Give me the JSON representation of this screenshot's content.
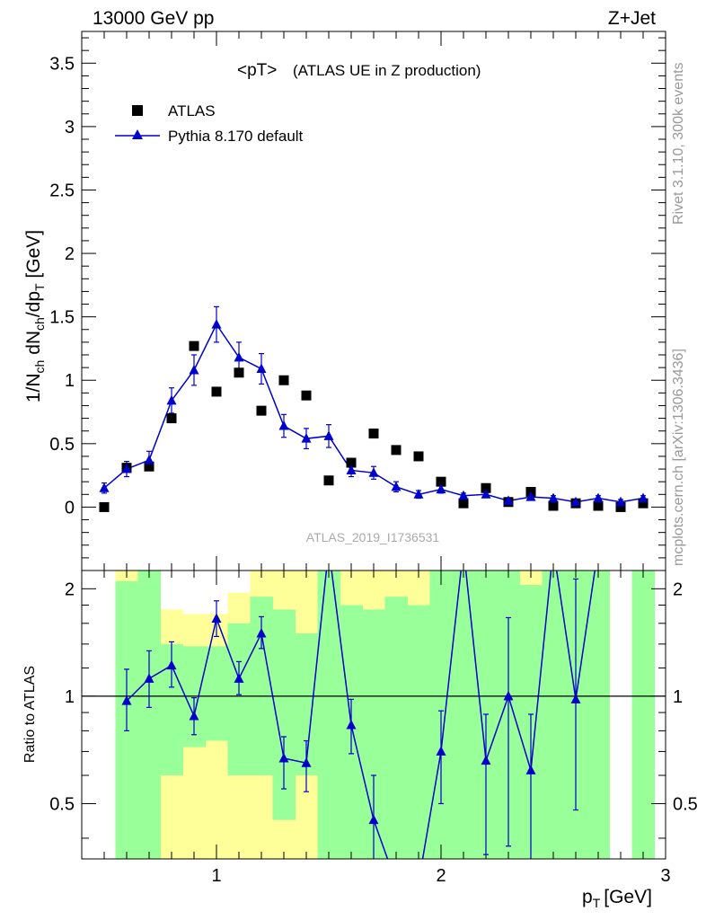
{
  "header": {
    "left": "13000 GeV pp",
    "right": "Z+Jet"
  },
  "side_labels": {
    "rivet": "Rivet 3.1.10,  300k events",
    "mcplots": "mcplots.cern.ch [arXiv:1306.3436]"
  },
  "chart_data": [
    {
      "type": "scatter",
      "title": "<pT>",
      "subtitle": "(ATLAS UE in Z production)",
      "watermark": "ATLAS_2019_I1736531",
      "xlabel": "p_T [GeV]",
      "xlabel_main": "p",
      "xlabel_sub": "T",
      "xlabel_unit": "[GeV]",
      "ylabel": "1/N_ch dN_ch/dp_T [GeV]",
      "xlim": [
        0.4,
        3.0
      ],
      "ylim": [
        -0.5,
        3.75
      ],
      "x_ticks": [
        "1",
        "2",
        "3"
      ],
      "y_ticks": [
        "0",
        "0.5",
        "1",
        "1.5",
        "2",
        "2.5",
        "3",
        "3.5"
      ],
      "legend_position": "top-left",
      "x": [
        0.5,
        0.6,
        0.7,
        0.8,
        0.9,
        1.0,
        1.1,
        1.2,
        1.3,
        1.4,
        1.5,
        1.6,
        1.7,
        1.8,
        1.9,
        2.0,
        2.1,
        2.2,
        2.3,
        2.4,
        2.5,
        2.6,
        2.7,
        2.8,
        2.9
      ],
      "series": [
        {
          "name": "ATLAS",
          "marker": "square",
          "color": "#000000",
          "values": [
            0.0,
            0.31,
            0.32,
            0.7,
            1.27,
            0.91,
            1.06,
            0.76,
            1.0,
            0.88,
            0.21,
            0.35,
            0.58,
            0.45,
            0.4,
            0.2,
            0.03,
            0.15,
            0.04,
            0.12,
            0.01,
            0.03,
            0.01,
            0.0,
            0.03
          ]
        },
        {
          "name": "Pythia 8.170 default",
          "marker": "triangle",
          "color": "#0000cc",
          "values": [
            0.15,
            0.3,
            0.37,
            0.84,
            1.08,
            1.44,
            1.18,
            1.09,
            0.64,
            0.54,
            0.56,
            0.29,
            0.27,
            0.16,
            0.1,
            0.14,
            0.09,
            0.1,
            0.05,
            0.08,
            0.07,
            0.04,
            0.07,
            0.04,
            0.07
          ],
          "errors": [
            0.04,
            0.06,
            0.07,
            0.1,
            0.12,
            0.14,
            0.12,
            0.12,
            0.09,
            0.08,
            0.09,
            0.05,
            0.05,
            0.04,
            0.03,
            0.03,
            0.02,
            0.02,
            0.02,
            0.02,
            0.02,
            0.02,
            0.02,
            0.02,
            0.02
          ]
        }
      ]
    },
    {
      "type": "line",
      "ylabel": "Ratio to ATLAS",
      "xlim": [
        0.4,
        3.0
      ],
      "ylim": [
        0.35,
        2.25
      ],
      "y_ticks": [
        "0.5",
        "1",
        "2"
      ],
      "reference_line": 1.0,
      "bands": {
        "yellow": [
          [
            0.45,
            0.55,
            null,
            null
          ],
          [
            0.55,
            0.65,
            2.25,
            0.35
          ],
          [
            0.65,
            0.75,
            null,
            null
          ],
          [
            0.75,
            0.85,
            1.75,
            0.35
          ],
          [
            0.85,
            0.95,
            1.7,
            0.35
          ],
          [
            0.95,
            1.05,
            1.7,
            0.35
          ],
          [
            1.05,
            1.15,
            1.95,
            0.35
          ],
          [
            1.15,
            1.25,
            2.25,
            0.35
          ],
          [
            1.25,
            1.35,
            2.25,
            0.35
          ],
          [
            1.35,
            1.45,
            2.25,
            0.35
          ],
          [
            1.45,
            1.55,
            2.25,
            0.35
          ],
          [
            1.55,
            1.65,
            2.25,
            0.35
          ],
          [
            1.65,
            1.75,
            2.25,
            0.35
          ],
          [
            1.75,
            1.85,
            2.25,
            0.35
          ],
          [
            1.85,
            1.95,
            2.25,
            0.35
          ],
          [
            1.95,
            2.05,
            2.25,
            0.35
          ],
          [
            2.05,
            2.15,
            2.25,
            0.35
          ],
          [
            2.15,
            2.25,
            2.25,
            0.35
          ],
          [
            2.25,
            2.35,
            2.25,
            0.35
          ],
          [
            2.35,
            2.45,
            2.25,
            0.35
          ],
          [
            2.45,
            2.55,
            2.25,
            0.35
          ],
          [
            2.55,
            2.65,
            2.25,
            0.35
          ],
          [
            2.65,
            2.75,
            2.25,
            0.35
          ]
        ],
        "green": [
          [
            0.55,
            0.65,
            2.1,
            0.35
          ],
          [
            0.65,
            0.75,
            2.25,
            0.35
          ],
          [
            0.75,
            0.85,
            1.4,
            0.6
          ],
          [
            0.85,
            0.95,
            1.38,
            0.72
          ],
          [
            0.95,
            1.05,
            1.38,
            0.75
          ],
          [
            1.05,
            1.15,
            1.6,
            0.6
          ],
          [
            1.15,
            1.25,
            1.9,
            0.6
          ],
          [
            1.25,
            1.35,
            1.75,
            0.45
          ],
          [
            1.35,
            1.45,
            1.5,
            0.6
          ],
          [
            1.45,
            1.55,
            2.25,
            0.35
          ],
          [
            1.55,
            1.65,
            1.8,
            0.35
          ],
          [
            1.65,
            1.75,
            1.75,
            0.35
          ],
          [
            1.75,
            1.85,
            1.9,
            0.35
          ],
          [
            1.85,
            1.95,
            1.8,
            0.35
          ],
          [
            1.95,
            2.05,
            2.25,
            0.35
          ],
          [
            2.05,
            2.15,
            2.25,
            0.35
          ],
          [
            2.15,
            2.25,
            2.25,
            0.35
          ],
          [
            2.25,
            2.35,
            2.25,
            0.35
          ],
          [
            2.35,
            2.45,
            2.05,
            0.35
          ],
          [
            2.45,
            2.55,
            2.25,
            0.35
          ],
          [
            2.55,
            2.65,
            2.25,
            0.35
          ],
          [
            2.65,
            2.75,
            2.25,
            0.35
          ],
          [
            2.85,
            2.95,
            2.25,
            0.35
          ]
        ]
      },
      "series": [
        {
          "name": "Pythia 8.170 default",
          "color": "#0000cc",
          "x": [
            0.6,
            0.7,
            0.8,
            0.9,
            1.0,
            1.1,
            1.2,
            1.3,
            1.4,
            1.5,
            1.6,
            1.7,
            1.8,
            1.9,
            2.0,
            2.1,
            2.2,
            2.3,
            2.4,
            2.5,
            2.6,
            2.7
          ],
          "values": [
            0.97,
            1.12,
            1.22,
            0.88,
            1.65,
            1.12,
            1.5,
            0.67,
            0.65,
            2.6,
            0.83,
            0.45,
            0.3,
            0.3,
            0.7,
            2.6,
            0.66,
            1.0,
            0.62,
            2.6,
            0.98,
            2.6
          ],
          "errors_low": [
            0.17,
            0.19,
            0.16,
            0.1,
            0.18,
            0.11,
            0.14,
            0.12,
            0.11,
            0,
            0.14,
            0.16,
            0,
            0,
            0.2,
            0,
            0.3,
            0.62,
            0.3,
            0,
            0.5,
            0
          ],
          "errors_high": [
            0.22,
            0.22,
            0.2,
            0.11,
            0.2,
            0.13,
            0.17,
            0.1,
            0.1,
            0,
            0.15,
            0.15,
            0,
            0,
            0.21,
            0,
            0.23,
            0.66,
            0.27,
            0,
            1.15,
            0
          ],
          "show_marker": [
            true,
            true,
            true,
            true,
            true,
            true,
            true,
            true,
            true,
            false,
            true,
            true,
            false,
            false,
            true,
            false,
            true,
            true,
            true,
            false,
            true,
            false
          ]
        }
      ]
    }
  ]
}
